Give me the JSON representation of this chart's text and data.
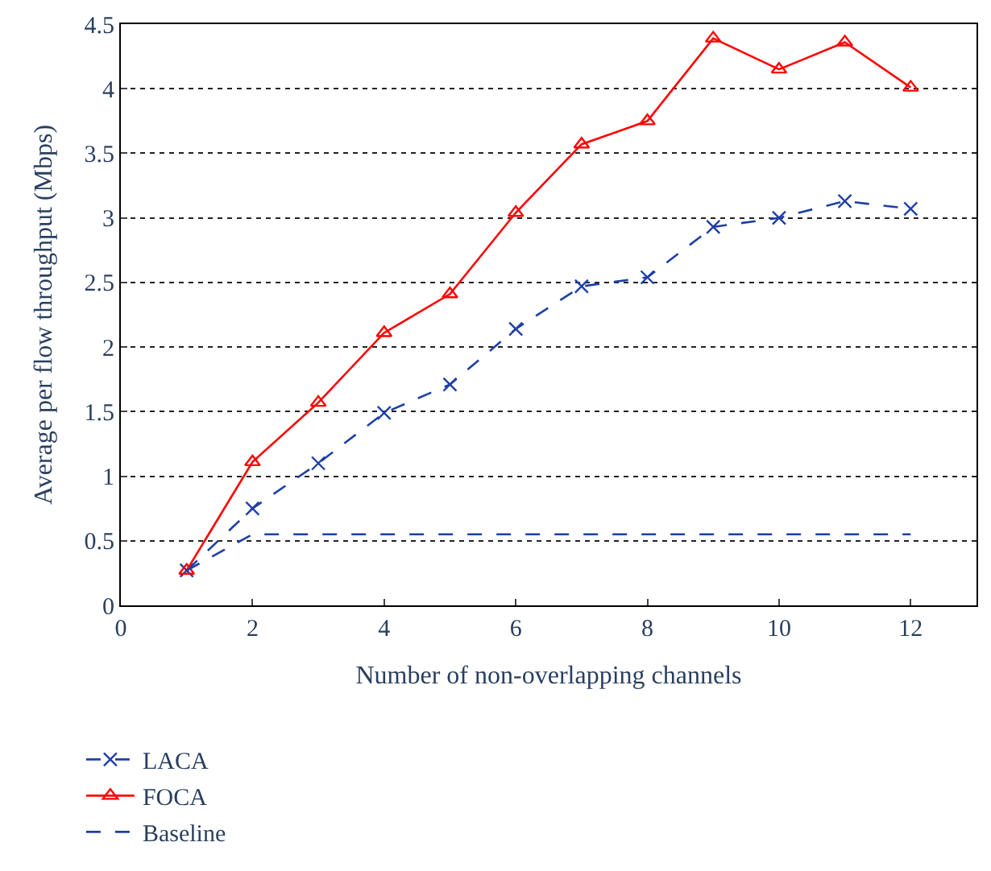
{
  "chart_data": {
    "type": "line",
    "xlabel": "Number of non-overlapping channels",
    "ylabel": "Average per flow throughput (Mbps)",
    "xlim": [
      0,
      13
    ],
    "xticks": [
      0,
      2,
      4,
      6,
      8,
      10,
      12
    ],
    "ylim": [
      0,
      4.5
    ],
    "yticks": [
      0,
      0.5,
      1,
      1.5,
      2,
      2.5,
      3,
      3.5,
      4,
      4.5
    ],
    "grid": "y",
    "legend": "bottom left",
    "x": [
      1,
      2,
      3,
      4,
      5,
      6,
      7,
      8,
      9,
      10,
      11,
      12
    ],
    "series": [
      {
        "name": "LACA",
        "color": "#1f3fa8",
        "marker": "cross",
        "line_style": "dashed",
        "values": [
          0.27,
          0.75,
          1.1,
          1.49,
          1.71,
          2.14,
          2.47,
          2.54,
          2.93,
          3.0,
          3.13,
          3.07
        ]
      },
      {
        "name": "FOCA",
        "color": "#ff0000",
        "marker": "triangle",
        "line_style": "solid",
        "values": [
          0.27,
          1.11,
          1.57,
          2.11,
          2.41,
          3.04,
          3.57,
          3.75,
          4.39,
          4.15,
          4.36,
          4.01
        ]
      },
      {
        "name": "Baseline",
        "color": "#1f3fa8",
        "marker": "none",
        "line_style": "dashed",
        "values": [
          0.27,
          0.55,
          0.55,
          0.55,
          0.55,
          0.55,
          0.55,
          0.55,
          0.55,
          0.55,
          0.55,
          0.55
        ]
      }
    ]
  }
}
